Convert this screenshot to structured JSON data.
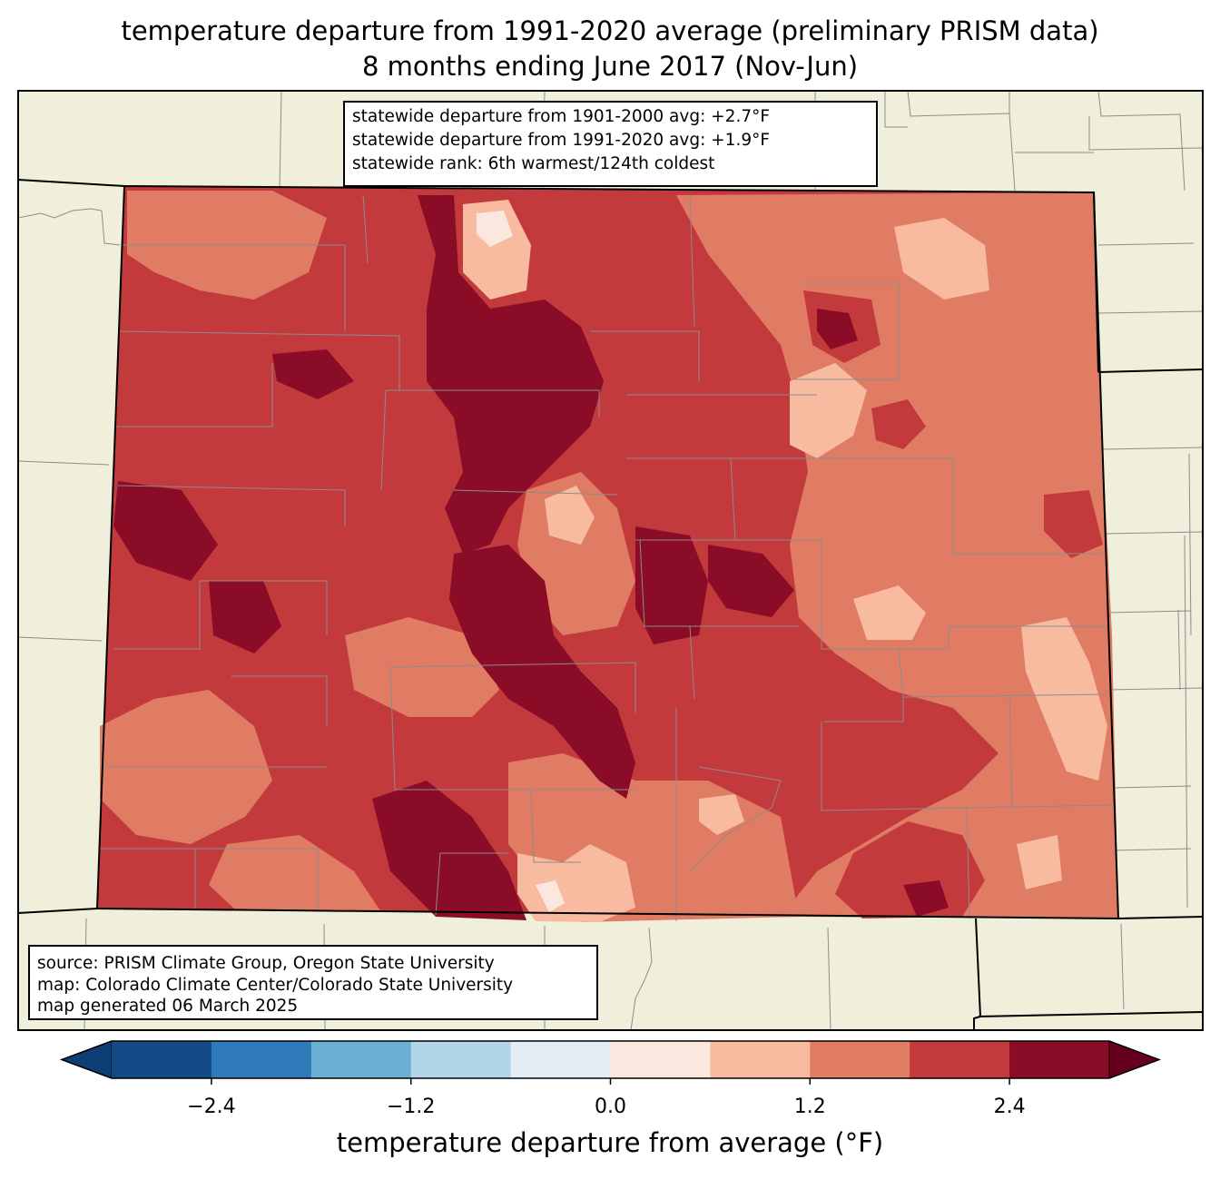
{
  "title": {
    "line1": "temperature departure from 1991-2020 average (preliminary PRISM data)",
    "line2": "8 months ending June 2017 (Nov-Jun)"
  },
  "stats": {
    "line1": "statewide departure from 1901-2000 avg: +2.7°F",
    "line2": "statewide departure from 1991-2020 avg: +1.9°F",
    "line3": "statewide rank: 6th warmest/124th coldest"
  },
  "credits": {
    "source": "source: PRISM Climate Group, Oregon State University",
    "map": "map: Colorado Climate Center/Colorado State University",
    "generated": "map generated 06 March 2025"
  },
  "colorbar": {
    "label": "temperature departure from average (°F)",
    "ticks": [
      "−2.4",
      "−1.2",
      "0.0",
      "1.2",
      "2.4"
    ],
    "tick_values": [
      -2.4,
      -1.2,
      0.0,
      1.2,
      2.4
    ],
    "bounds": [
      -3.0,
      -2.4,
      -1.8,
      -1.2,
      -0.6,
      0.0,
      0.6,
      1.2,
      1.8,
      2.4,
      3.0
    ],
    "colors": [
      "#0d3e75",
      "#144a86",
      "#2f7ab8",
      "#6bafd3",
      "#b2d5e7",
      "#e4edf4",
      "#fae7dd",
      "#f8bba0",
      "#e07b64",
      "#c33a3c",
      "#8a0c26",
      "#67001f"
    ]
  },
  "colors": {
    "land": "#efefdb",
    "background": "#ffffff"
  }
}
